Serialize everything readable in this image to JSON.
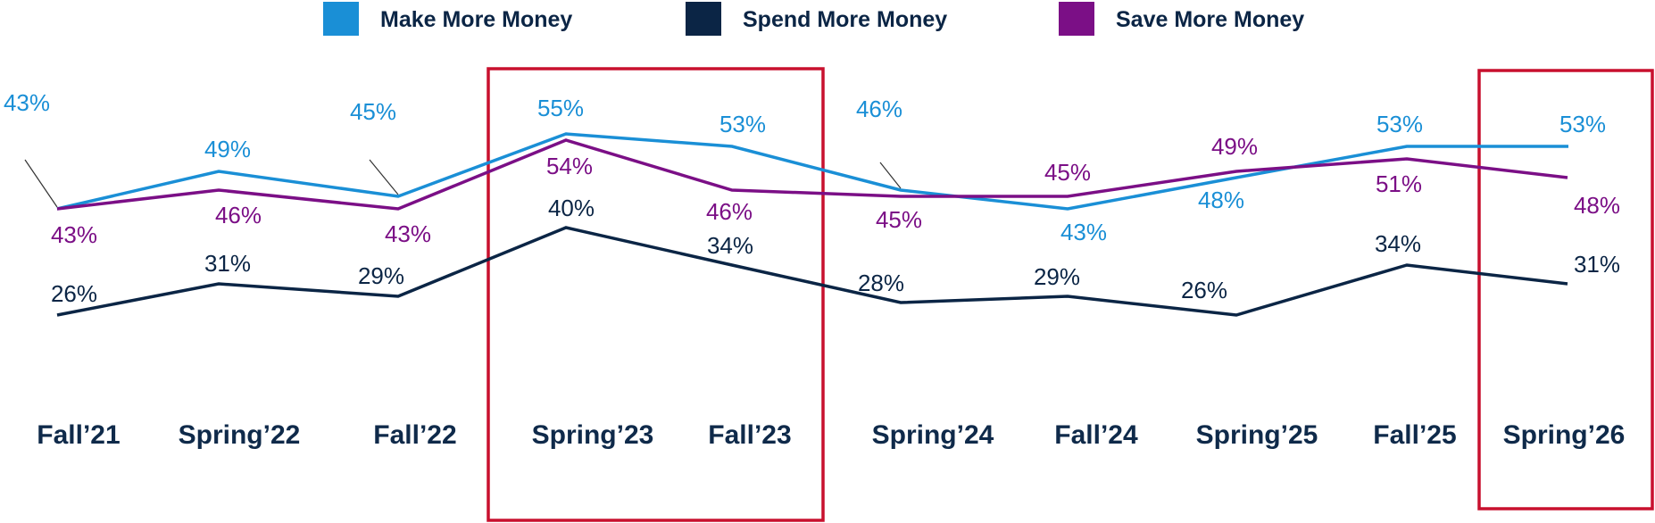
{
  "chart_data": {
    "type": "line",
    "categories": [
      "Fall’21",
      "Spring’22",
      "Fall’22",
      "Spring’23",
      "Fall’23",
      "Spring’24",
      "Fall’24",
      "Spring’25",
      "Fall’25",
      "Spring’26"
    ],
    "series": [
      {
        "name": "Make More Money",
        "color": "#1a8fd6",
        "values": [
          43,
          49,
          45,
          55,
          53,
          46,
          43,
          48,
          53,
          53
        ]
      },
      {
        "name": "Spend More Money",
        "color": "#0b2545",
        "values": [
          26,
          31,
          29,
          40,
          34,
          28,
          29,
          26,
          34,
          31
        ]
      },
      {
        "name": "Save More Money",
        "color": "#7b0f86",
        "values": [
          43,
          46,
          43,
          54,
          46,
          45,
          45,
          49,
          51,
          48
        ]
      }
    ],
    "value_suffix": "%",
    "highlight_color": "#c8102e",
    "highlighted_periods": [
      [
        "Spring’23",
        "Fall’23"
      ],
      [
        "Spring’26"
      ]
    ],
    "title": "",
    "xlabel": "",
    "ylabel": "",
    "grid": false,
    "legend": "top-center"
  }
}
